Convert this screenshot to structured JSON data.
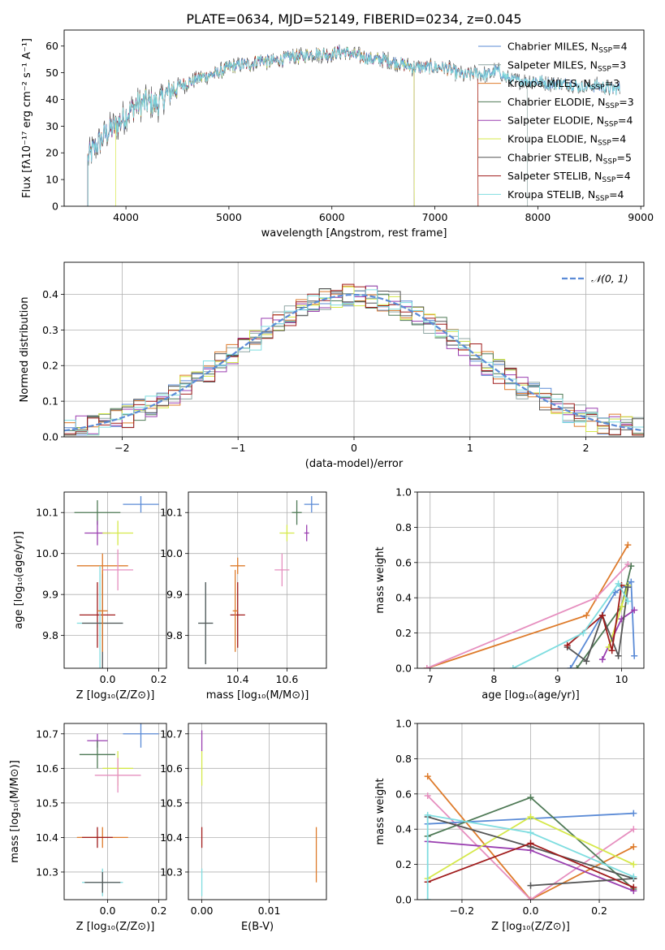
{
  "figure_title": "PLATE=0634, MJD=52149, FIBERID=0234, z=0.045",
  "colors": {
    "chabrier_miles": "#5b8bd6",
    "salpeter_miles": "#8fa6a3",
    "kroupa_miles": "#de7b2b",
    "chabrier_elodie": "#4f7a56",
    "salpeter_elodie": "#9a3fb0",
    "kroupa_elodie": "#d5e84a",
    "chabrier_stelib": "#555555",
    "salpeter_stelib": "#a01c1c",
    "kroupa_stelib": "#7fdde0",
    "pink": "#e68fbf",
    "gaussian": "#5b8bd6"
  },
  "chart_data": [
    {
      "id": "spectrum",
      "type": "line",
      "xlabel": "wavelength [Angstrom, rest frame]",
      "ylabel": "Flux [fλ10⁻¹⁷ erg cm⁻² s⁻¹ A⁻¹]",
      "xlim": [
        3400,
        9030
      ],
      "ylim": [
        0,
        66
      ],
      "xticks": [
        4000,
        5000,
        6000,
        7000,
        8000,
        9000
      ],
      "yticks": [
        0,
        10,
        20,
        30,
        40,
        50,
        60
      ],
      "legend_position": "top-right",
      "legend": [
        {
          "name": "Chabrier MILES, N_SSP=4",
          "base": "Chabrier MILES, N",
          "sub": "SSP",
          "tail": "=4",
          "color_key": "chabrier_miles"
        },
        {
          "name": "Salpeter MILES, N_SSP=3",
          "base": "Salpeter MILES, N",
          "sub": "SSP",
          "tail": "=3",
          "color_key": "salpeter_miles"
        },
        {
          "name": "Kroupa MILES, N_SSP=3",
          "base": "Kroupa MILES, N",
          "sub": "SSP",
          "tail": "=3",
          "color_key": "kroupa_miles"
        },
        {
          "name": "Chabrier ELODIE, N_SSP=3",
          "base": "Chabrier ELODIE, N",
          "sub": "SSP",
          "tail": "=3",
          "color_key": "chabrier_elodie"
        },
        {
          "name": "Salpeter ELODIE, N_SSP=4",
          "base": "Salpeter ELODIE, N",
          "sub": "SSP",
          "tail": "=4",
          "color_key": "salpeter_elodie"
        },
        {
          "name": "Kroupa ELODIE, N_SSP=4",
          "base": "Kroupa ELODIE, N",
          "sub": "SSP",
          "tail": "=4",
          "color_key": "kroupa_elodie"
        },
        {
          "name": "Chabrier STELIB, N_SSP=5",
          "base": "Chabrier STELIB, N",
          "sub": "SSP",
          "tail": "=5",
          "color_key": "chabrier_stelib"
        },
        {
          "name": "Salpeter STELIB, N_SSP=4",
          "base": "Salpeter STELIB, N",
          "sub": "SSP",
          "tail": "=4",
          "color_key": "salpeter_stelib"
        },
        {
          "name": "Kroupa STELIB, N_SSP=4",
          "base": "Kroupa STELIB, N",
          "sub": "SSP",
          "tail": "=4",
          "color_key": "kroupa_stelib"
        }
      ],
      "continuum": [
        [
          3630,
          18
        ],
        [
          3700,
          22
        ],
        [
          3800,
          27
        ],
        [
          3900,
          30
        ],
        [
          4000,
          34
        ],
        [
          4100,
          38
        ],
        [
          4200,
          39
        ],
        [
          4300,
          38
        ],
        [
          4400,
          42
        ],
        [
          4500,
          45
        ],
        [
          4600,
          46
        ],
        [
          4700,
          48
        ],
        [
          4800,
          49
        ],
        [
          4900,
          50
        ],
        [
          5000,
          52
        ],
        [
          5100,
          53
        ],
        [
          5200,
          53
        ],
        [
          5300,
          55
        ],
        [
          5400,
          54
        ],
        [
          5500,
          55
        ],
        [
          5600,
          56
        ],
        [
          5700,
          56
        ],
        [
          5800,
          57
        ],
        [
          5900,
          57
        ],
        [
          6000,
          57
        ],
        [
          6100,
          58
        ],
        [
          6200,
          57
        ],
        [
          6300,
          56
        ],
        [
          6400,
          55
        ],
        [
          6500,
          55
        ],
        [
          6600,
          54
        ],
        [
          6700,
          53
        ],
        [
          6800,
          52
        ],
        [
          6900,
          52
        ],
        [
          7000,
          52
        ],
        [
          7100,
          52
        ],
        [
          7200,
          50
        ],
        [
          7300,
          49
        ],
        [
          7400,
          50
        ],
        [
          7500,
          49
        ],
        [
          7600,
          51
        ],
        [
          7700,
          48
        ],
        [
          7800,
          47
        ],
        [
          7900,
          47
        ],
        [
          8000,
          47
        ],
        [
          8100,
          46
        ],
        [
          8200,
          46
        ],
        [
          8300,
          46
        ],
        [
          8400,
          45
        ],
        [
          8500,
          45
        ],
        [
          8600,
          45
        ],
        [
          8700,
          44
        ],
        [
          8800,
          44
        ]
      ],
      "noise_amplitude": 4,
      "range_ends": {
        "chabrier_miles": 8800,
        "salpeter_miles": 7900,
        "kroupa_miles": 7420,
        "chabrier_elodie": 6800,
        "salpeter_elodie": 6800,
        "kroupa_elodie": 6800,
        "chabrier_stelib": 8800,
        "salpeter_stelib": 7420,
        "kroupa_stelib": 8800
      },
      "range_starts": {
        "default": 3630,
        "kroupa_elodie": 3900
      }
    },
    {
      "id": "residuals",
      "type": "histogram",
      "xlabel": "(data-model)/error",
      "ylabel": "Normed distribution",
      "xlim": [
        -2.5,
        2.5
      ],
      "ylim": [
        0,
        0.49
      ],
      "xticks": [
        -2,
        -1,
        0,
        1,
        2
      ],
      "yticks": [
        0.0,
        0.1,
        0.2,
        0.3,
        0.4
      ],
      "grid": true,
      "bin_width": 0.1,
      "bin_start": -2.5,
      "gaussian_label": "𝒩(0, 1)",
      "legend_position": "top-right",
      "series_colors": [
        "chabrier_miles",
        "salpeter_miles",
        "kroupa_miles",
        "chabrier_elodie",
        "salpeter_elodie",
        "kroupa_elodie",
        "chabrier_stelib",
        "salpeter_stelib",
        "kroupa_stelib"
      ]
    },
    {
      "id": "age_vs_Z",
      "type": "scatter",
      "xlabel": "Z [log₁₀(Z/Z⊙)]",
      "ylabel": "age  [log₁₀(age/yr)]",
      "xlim": [
        -0.17,
        0.23
      ],
      "ylim": [
        9.72,
        10.15
      ],
      "xticks": [
        -0.2,
        0.0,
        0.2
      ],
      "xtick_labels": [
        "−0.2",
        "0.0",
        "0.2"
      ],
      "yticks": [
        9.8,
        9.9,
        10.0,
        10.1
      ],
      "grid": true,
      "points": [
        {
          "x": 0.13,
          "y": 10.12,
          "xerr": 0.07,
          "yerr": 0.02,
          "color_key": "chabrier_miles"
        },
        {
          "x": -0.04,
          "y": 10.1,
          "xerr": 0.09,
          "yerr": 0.03,
          "color_key": "chabrier_elodie"
        },
        {
          "x": -0.04,
          "y": 10.05,
          "xerr": 0.05,
          "yerr": 0.03,
          "color_key": "salpeter_elodie"
        },
        {
          "x": 0.04,
          "y": 10.05,
          "xerr": 0.06,
          "yerr": 0.03,
          "color_key": "kroupa_elodie"
        },
        {
          "x": -0.02,
          "y": 9.97,
          "xerr": 0.1,
          "yerr": 0.03,
          "color_key": "kroupa_miles"
        },
        {
          "x": 0.04,
          "y": 9.96,
          "xerr": 0.06,
          "yerr": 0.05,
          "color_key": "pink"
        },
        {
          "x": -0.04,
          "y": 9.85,
          "xerr": 0.07,
          "yerr": 0.08,
          "color_key": "salpeter_stelib"
        },
        {
          "x": -0.03,
          "y": 9.83,
          "xerr": 0.09,
          "yerr": 0.14,
          "color_key": "kroupa_stelib"
        },
        {
          "x": -0.02,
          "y": 9.83,
          "xerr": 0.08,
          "yerr": 0.12,
          "color_key": "chabrier_stelib"
        },
        {
          "x": -0.02,
          "y": 9.86,
          "xerr": 0.02,
          "yerr": 0.1,
          "color_key": "kroupa_miles"
        }
      ]
    },
    {
      "id": "age_vs_mass",
      "type": "scatter",
      "xlabel": "mass [log₁₀(M/M⊙)]",
      "ylabel": "",
      "xlim": [
        10.2,
        10.76
      ],
      "ylim": [
        9.72,
        10.15
      ],
      "xticks": [
        10.4,
        10.6
      ],
      "yticks": [
        9.8,
        9.9,
        10.0,
        10.1
      ],
      "grid": true,
      "points": [
        {
          "x": 10.7,
          "y": 10.12,
          "xerr": 0.03,
          "yerr": 0.02,
          "color_key": "chabrier_miles"
        },
        {
          "x": 10.64,
          "y": 10.1,
          "xerr": 0.02,
          "yerr": 0.03,
          "color_key": "chabrier_elodie"
        },
        {
          "x": 10.68,
          "y": 10.05,
          "xerr": 0.01,
          "yerr": 0.02,
          "color_key": "salpeter_elodie"
        },
        {
          "x": 10.6,
          "y": 10.05,
          "xerr": 0.03,
          "yerr": 0.02,
          "color_key": "kroupa_elodie"
        },
        {
          "x": 10.4,
          "y": 9.97,
          "xerr": 0.03,
          "yerr": 0.02,
          "color_key": "kroupa_miles"
        },
        {
          "x": 10.58,
          "y": 9.96,
          "xerr": 0.03,
          "yerr": 0.04,
          "color_key": "pink"
        },
        {
          "x": 10.4,
          "y": 9.85,
          "xerr": 0.03,
          "yerr": 0.08,
          "color_key": "salpeter_stelib"
        },
        {
          "x": 10.27,
          "y": 9.83,
          "xerr": 0.03,
          "yerr": 0.1,
          "color_key": "kroupa_stelib"
        },
        {
          "x": 10.27,
          "y": 9.83,
          "xerr": 0.03,
          "yerr": 0.1,
          "color_key": "chabrier_stelib"
        },
        {
          "x": 10.39,
          "y": 9.86,
          "xerr": 0.01,
          "yerr": 0.1,
          "color_key": "kroupa_miles"
        }
      ]
    },
    {
      "id": "mass_weight_vs_age",
      "type": "line",
      "xlabel": "age  [log₁₀(age/yr)]",
      "ylabel": "mass weight",
      "xlim": [
        6.8,
        10.35
      ],
      "ylim": [
        0,
        1
      ],
      "xticks": [
        7,
        8,
        9,
        10
      ],
      "yticks": [
        0.0,
        0.2,
        0.4,
        0.6,
        0.8,
        1.0
      ],
      "grid": true,
      "series": [
        {
          "color_key": "kroupa_miles",
          "x": [
            6.95,
            9.45,
            10.1
          ],
          "y": [
            0.0,
            0.3,
            0.7
          ]
        },
        {
          "color_key": "pink",
          "x": [
            6.95,
            9.6,
            10.1
          ],
          "y": [
            0.0,
            0.4,
            0.59
          ]
        },
        {
          "color_key": "chabrier_miles",
          "x": [
            9.2,
            9.9,
            10.15,
            10.2
          ],
          "y": [
            0.0,
            0.43,
            0.49,
            0.07
          ]
        },
        {
          "color_key": "chabrier_elodie",
          "x": [
            9.3,
            10.0,
            10.15
          ],
          "y": [
            0.0,
            0.35,
            0.58
          ]
        },
        {
          "color_key": "salpeter_elodie",
          "x": [
            9.7,
            10.0,
            10.2
          ],
          "y": [
            0.05,
            0.28,
            0.33
          ]
        },
        {
          "color_key": "kroupa_elodie",
          "x": [
            9.8,
            10.0,
            10.1
          ],
          "y": [
            0.12,
            0.35,
            0.47
          ]
        },
        {
          "color_key": "chabrier_stelib",
          "x": [
            9.15,
            9.45,
            9.7,
            9.95,
            10.1
          ],
          "y": [
            0.12,
            0.04,
            0.3,
            0.07,
            0.46
          ]
        },
        {
          "color_key": "salpeter_stelib",
          "x": [
            9.15,
            9.7,
            9.85,
            10.0
          ],
          "y": [
            0.13,
            0.3,
            0.1,
            0.47
          ]
        },
        {
          "color_key": "kroupa_stelib",
          "x": [
            8.3,
            9.4,
            9.95,
            10.1
          ],
          "y": [
            0.0,
            0.2,
            0.48,
            0.38
          ]
        }
      ]
    },
    {
      "id": "mass_vs_Z",
      "type": "scatter",
      "xlabel": "Z [log₁₀(Z/Z⊙)]",
      "ylabel": "mass [log₁₀(M/M⊙)]",
      "xlim": [
        -0.17,
        0.23
      ],
      "ylim": [
        10.22,
        10.73
      ],
      "xticks": [
        -0.2,
        0.0,
        0.2
      ],
      "xtick_labels": [
        "−0.2",
        "0.0",
        "0.2"
      ],
      "yticks": [
        10.3,
        10.4,
        10.5,
        10.6,
        10.7
      ],
      "grid": true,
      "points": [
        {
          "x": 0.13,
          "y": 10.7,
          "xerr": 0.07,
          "yerr": 0.04,
          "color_key": "chabrier_miles"
        },
        {
          "x": -0.04,
          "y": 10.68,
          "xerr": 0.04,
          "yerr": 0.02,
          "color_key": "salpeter_elodie"
        },
        {
          "x": -0.04,
          "y": 10.64,
          "xerr": 0.07,
          "yerr": 0.04,
          "color_key": "chabrier_elodie"
        },
        {
          "x": 0.04,
          "y": 10.6,
          "xerr": 0.06,
          "yerr": 0.05,
          "color_key": "kroupa_elodie"
        },
        {
          "x": 0.04,
          "y": 10.58,
          "xerr": 0.09,
          "yerr": 0.05,
          "color_key": "pink"
        },
        {
          "x": -0.02,
          "y": 10.4,
          "xerr": 0.1,
          "yerr": 0.03,
          "color_key": "kroupa_miles"
        },
        {
          "x": -0.04,
          "y": 10.4,
          "xerr": 0.06,
          "yerr": 0.03,
          "color_key": "salpeter_stelib"
        },
        {
          "x": -0.02,
          "y": 10.27,
          "xerr": 0.08,
          "yerr": 0.04,
          "color_key": "kroupa_stelib"
        },
        {
          "x": -0.02,
          "y": 10.27,
          "xerr": 0.07,
          "yerr": 0.03,
          "color_key": "chabrier_stelib"
        }
      ]
    },
    {
      "id": "mass_vs_ebv",
      "type": "scatter",
      "xlabel": "E(B-V)",
      "ylabel": "",
      "xlim": [
        -0.002,
        0.0185
      ],
      "ylim": [
        10.22,
        10.73
      ],
      "xticks": [
        0.0,
        0.01
      ],
      "xtick_labels": [
        "0.00",
        "0.01"
      ],
      "yticks": [
        10.3,
        10.4,
        10.5,
        10.6,
        10.7
      ],
      "grid": true,
      "points": [
        {
          "x": 0.0,
          "y": 10.68,
          "xerr": 0.0,
          "yerr": 0.03,
          "color_key": "salpeter_elodie"
        },
        {
          "x": 0.0,
          "y": 10.6,
          "xerr": 0.0,
          "yerr": 0.05,
          "color_key": "kroupa_elodie"
        },
        {
          "x": 0.0,
          "y": 10.4,
          "xerr": 0.0,
          "yerr": 0.03,
          "color_key": "salpeter_stelib"
        },
        {
          "x": 0.0,
          "y": 10.27,
          "xerr": 0.0,
          "yerr": 0.04,
          "color_key": "kroupa_stelib"
        },
        {
          "x": 0.017,
          "y": 10.35,
          "xerr": 0.0,
          "yerr": 0.08,
          "color_key": "kroupa_miles"
        }
      ]
    },
    {
      "id": "mass_weight_vs_Z",
      "type": "line",
      "xlabel": "Z [log₁₀(Z/Z⊙)]",
      "ylabel": "mass weight",
      "xlim": [
        -0.33,
        0.33
      ],
      "ylim": [
        0,
        1
      ],
      "xticks": [
        -0.2,
        0.0,
        0.2
      ],
      "xtick_labels": [
        "−0.2",
        "0.0",
        "0.2"
      ],
      "yticks": [
        0.0,
        0.2,
        0.4,
        0.6,
        0.8,
        1.0
      ],
      "grid": true,
      "series": [
        {
          "color_key": "kroupa_miles",
          "x": [
            -0.3,
            0.0,
            0.3
          ],
          "y": [
            0.7,
            0.0,
            0.3
          ]
        },
        {
          "color_key": "pink",
          "x": [
            -0.3,
            0.0,
            0.3
          ],
          "y": [
            0.59,
            0.0,
            0.4
          ]
        },
        {
          "color_key": "chabrier_miles",
          "x": [
            -0.3,
            0.3
          ],
          "y": [
            0.43,
            0.49
          ]
        },
        {
          "color_key": "chabrier_elodie",
          "x": [
            -0.3,
            0.0,
            0.3
          ],
          "y": [
            0.36,
            0.58,
            0.06
          ]
        },
        {
          "color_key": "salpeter_elodie",
          "x": [
            -0.3,
            0.0,
            0.3
          ],
          "y": [
            0.33,
            0.28,
            0.05
          ]
        },
        {
          "color_key": "kroupa_elodie",
          "x": [
            -0.3,
            0.0,
            0.3
          ],
          "y": [
            0.12,
            0.47,
            0.2
          ]
        },
        {
          "color_key": "chabrier_stelib",
          "x": [
            -0.3,
            0.0,
            0.3,
            0.0,
            0.3
          ],
          "y": [
            0.47,
            0.3,
            0.12,
            0.08,
            0.12
          ]
        },
        {
          "color_key": "salpeter_stelib",
          "x": [
            -0.3,
            0.0,
            0.3
          ],
          "y": [
            0.1,
            0.32,
            0.07
          ]
        },
        {
          "color_key": "kroupa_stelib",
          "x": [
            -0.3,
            -0.3,
            0.0,
            0.3
          ],
          "y": [
            0.0,
            0.48,
            0.38,
            0.13
          ]
        }
      ]
    }
  ]
}
